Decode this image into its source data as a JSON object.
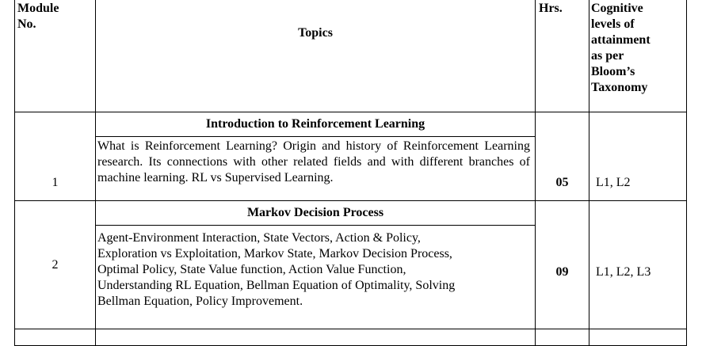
{
  "header": {
    "module_no_line1": "Module",
    "module_no_line2": "No.",
    "topics": "Topics",
    "hrs": "Hrs.",
    "cognitive_lines": [
      "Cognitive",
      "levels of",
      "attainment",
      "as per",
      "Bloom’s",
      "Taxonomy"
    ]
  },
  "modules": [
    {
      "number": "1",
      "title": "Introduction to Reinforcement Learning",
      "description": "What is Reinforcement Learning? Origin and history of Reinforcement Learning research. Its connections with other related fields and with different branches of machine learning. RL vs Supervised Learning.",
      "hours": "05",
      "levels": "L1, L2"
    },
    {
      "number": "2",
      "title": "Markov Decision Process",
      "description_lines": [
        "Agent-Environment Interaction, State Vectors, Action & Policy,",
        "Exploration vs Exploitation, Markov State, Markov Decision Process,",
        "Optimal Policy, State Value function, Action Value Function,",
        "Understanding RL Equation, Bellman Equation of Optimality, Solving",
        "Bellman Equation, Policy Improvement."
      ],
      "hours": "09",
      "levels": "L1, L2, L3"
    }
  ]
}
